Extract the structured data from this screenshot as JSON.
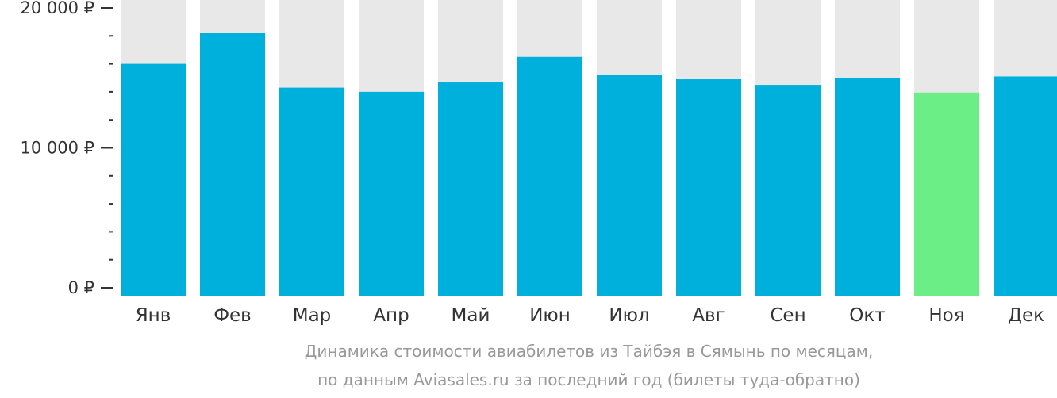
{
  "chart_data": {
    "type": "bar",
    "title": "",
    "xlabel": "",
    "ylabel": "",
    "categories": [
      "Янв",
      "Фев",
      "Мар",
      "Апр",
      "Май",
      "Июн",
      "Июл",
      "Авг",
      "Сен",
      "Окт",
      "Ноя",
      "Дек"
    ],
    "values": [
      16000,
      18200,
      14300,
      14000,
      14700,
      16500,
      15200,
      14900,
      14500,
      15000,
      13950,
      15100
    ],
    "ylim": [
      0,
      21000
    ],
    "yticks": [
      {
        "value": 0,
        "label": "0 ₽"
      },
      {
        "value": 10000,
        "label": "10 000 ₽"
      },
      {
        "value": 20000,
        "label": "20 000 ₽"
      }
    ],
    "minor_tick_step": 2000,
    "highlight_index": 10,
    "colors": {
      "bar": "#00b0dc",
      "highlight": "#6bee85",
      "background_bar": "#e8e8e8",
      "axis": "#333333"
    },
    "grid": false,
    "legend": "none"
  },
  "caption": {
    "line1": "Динамика стоимости авиабилетов из Тайбэя в Сямынь по месяцам,",
    "line2": "по данным Aviasales.ru за последний год (билеты туда-обратно)"
  }
}
